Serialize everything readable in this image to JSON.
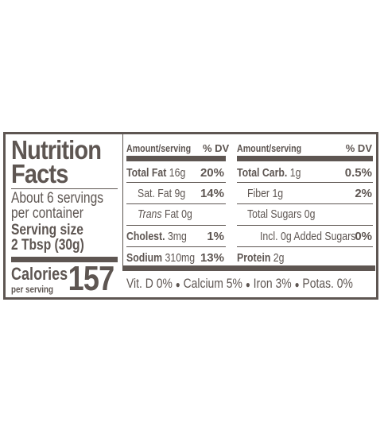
{
  "label": {
    "title_line1": "Nutrition",
    "title_line2": "Facts",
    "servings_line1": "About 6 servings",
    "servings_line2": "per container",
    "serving_size_label": "Serving size",
    "serving_size_value": "2 Tbsp (30g)",
    "calories_label": "Calories",
    "calories_sub": "per serving",
    "calories_value": "157"
  },
  "left_table": {
    "header_amount": "Amount/serving",
    "header_dv": "% DV",
    "rows": [
      {
        "name": "Total Fat",
        "amount": "16g",
        "dv": "20%"
      },
      {
        "name": "Sat. Fat",
        "amount": "9g",
        "dv": "14%"
      },
      {
        "name": "Trans",
        "name_rest": " Fat",
        "amount": "0g",
        "dv": ""
      },
      {
        "name": "Cholest.",
        "amount": "3mg",
        "dv": "1%"
      },
      {
        "name": "Sodium",
        "amount": "310mg",
        "dv": "13%"
      }
    ]
  },
  "right_table": {
    "header_amount": "Amount/serving",
    "header_dv": "% DV",
    "rows": [
      {
        "name": "Total Carb.",
        "amount": "1g",
        "dv": "0.5%"
      },
      {
        "name": "Fiber",
        "amount": "1g",
        "dv": "2%"
      },
      {
        "name": "Total Sugars",
        "amount": "0g",
        "dv": ""
      },
      {
        "name": "Incl. 0g Added Sugars",
        "amount": "",
        "dv": "0%"
      },
      {
        "name": "Protein",
        "amount": "2g",
        "dv": ""
      }
    ]
  },
  "footer": {
    "vitd": "Vit. D 0%",
    "calcium": "Calcium 5%",
    "iron": "Iron 3%",
    "potas": "Potas. 0%",
    "separator": "●"
  },
  "colors": {
    "ink": "#5e5652",
    "background": "#ffffff"
  }
}
